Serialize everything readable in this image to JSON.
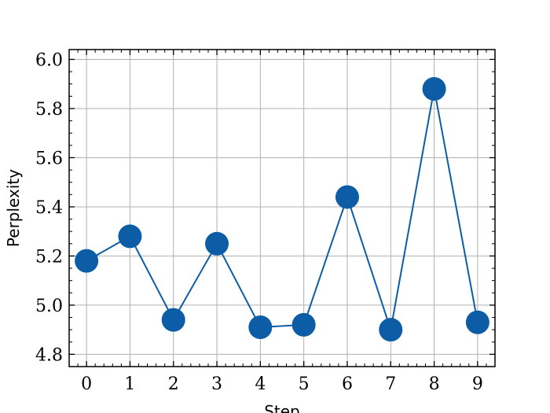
{
  "chart_data": {
    "type": "line",
    "title": "",
    "xlabel": "Step",
    "ylabel": "Perplexity",
    "x": [
      0,
      1,
      2,
      3,
      4,
      5,
      6,
      7,
      8,
      9
    ],
    "series": [
      {
        "values": [
          5.18,
          5.28,
          4.94,
          5.25,
          4.91,
          4.92,
          5.44,
          4.9,
          5.88,
          4.93
        ],
        "color": "#0C5DA5",
        "marker": "circle"
      }
    ],
    "xlim": [
      -0.4,
      9.4
    ],
    "ylim": [
      4.75,
      6.04
    ],
    "xticks": [
      "0",
      "1",
      "2",
      "3",
      "4",
      "5",
      "6",
      "7",
      "8",
      "9"
    ],
    "yticks": [
      "4.8",
      "5.0",
      "5.2",
      "5.4",
      "5.6",
      "5.8",
      "6.0"
    ],
    "grid": true,
    "legend": "none"
  }
}
